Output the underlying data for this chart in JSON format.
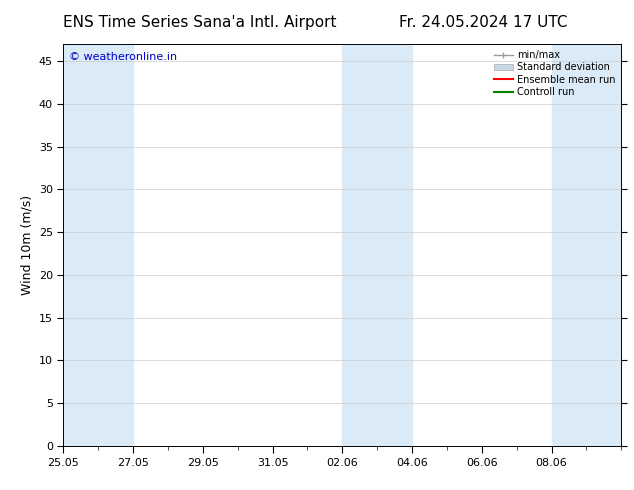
{
  "title_left": "ENS Time Series Sana'a Intl. Airport",
  "title_right": "Fr. 24.05.2024 17 UTC",
  "ylabel": "Wind 10m (m/s)",
  "watermark": "© weatheronline.in",
  "watermark_color": "#0000cc",
  "ylim": [
    0,
    47
  ],
  "yticks": [
    0,
    5,
    10,
    15,
    20,
    25,
    30,
    35,
    40,
    45
  ],
  "background_color": "#ffffff",
  "plot_bg_color": "#ffffff",
  "shade_color": "#daeaf7",
  "shade_alpha": 1.0,
  "legend_labels": [
    "min/max",
    "Standard deviation",
    "Ensemble mean run",
    "Controll run"
  ],
  "minmax_color": "#999999",
  "std_color": "#c8d8e8",
  "ensemble_color": "#ff0000",
  "control_color": "#008000",
  "title_fontsize": 11,
  "axis_fontsize": 9,
  "tick_fontsize": 8,
  "x_tick_labels": [
    "25.05",
    "27.05",
    "29.05",
    "31.05",
    "02.06",
    "04.06",
    "06.06",
    "08.06"
  ],
  "x_tick_positions": [
    0,
    2,
    4,
    6,
    8,
    10,
    12,
    14
  ],
  "shade_bands": [
    [
      0,
      1
    ],
    [
      1,
      2
    ],
    [
      8,
      10
    ],
    [
      14,
      16
    ]
  ],
  "xlim": [
    0,
    16
  ],
  "total_days": 16
}
